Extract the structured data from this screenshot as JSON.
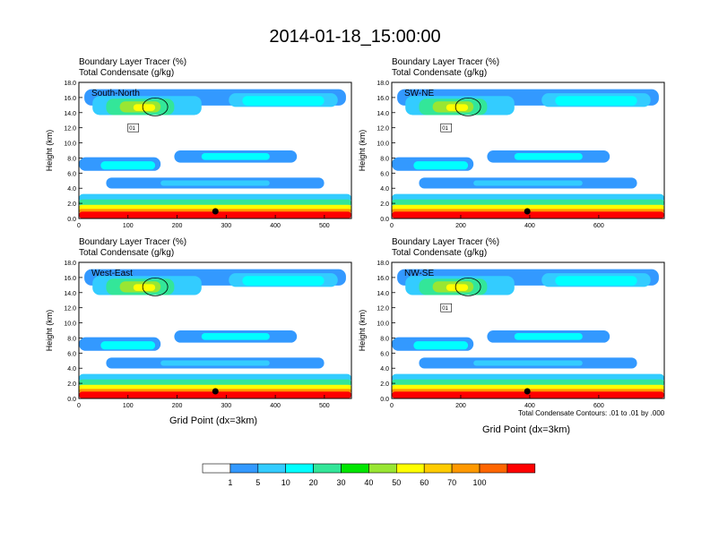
{
  "title": "2014-01-18_15:00:00",
  "colors": {
    "levels": [
      "#ffffff",
      "#3399ff",
      "#33ccff",
      "#00ffff",
      "#33e699",
      "#00e600",
      "#99e633",
      "#ffff00",
      "#ffcc00",
      "#ff9900",
      "#ff6600",
      "#ff0000"
    ],
    "contour": "#000000"
  },
  "colorbar": {
    "ticks": [
      "1",
      "5",
      "10",
      "20",
      "30",
      "40",
      "50",
      "60",
      "70",
      "100"
    ]
  },
  "contour_note": "Total Condensate Contours: .01 to .01 by .000",
  "chart_data": [
    {
      "type": "heatmap",
      "line1": "Boundary Layer Tracer   (%)",
      "line2": "Total Condensate   (g/kg)",
      "panel_label": "South-North",
      "ylabel": "Height (km)",
      "xlabel": "",
      "xlim": [
        0,
        555
      ],
      "ylim": [
        0,
        18
      ],
      "xticks": [
        "0",
        "100",
        "200",
        "300",
        "400",
        "500"
      ],
      "yticks": [
        "0.0",
        "2.0",
        "4.0",
        "6.0",
        "8.0",
        "10.0",
        "12.0",
        "14.0",
        "16.0",
        "18.0"
      ],
      "contour_label": "01",
      "marker_x": 278
    },
    {
      "type": "heatmap",
      "line1": "Boundary Layer Tracer   (%)",
      "line2": "Total Condensate   (g/kg)",
      "panel_label": "SW-NE",
      "ylabel": "Height (km)",
      "xlabel": "",
      "xlim": [
        0,
        790
      ],
      "ylim": [
        0,
        18
      ],
      "xticks": [
        "0",
        "200",
        "400",
        "600"
      ],
      "yticks": [
        "0.0",
        "2.0",
        "4.0",
        "6.0",
        "8.0",
        "10.0",
        "12.0",
        "14.0",
        "16.0",
        "18.0"
      ],
      "contour_label": "01",
      "marker_x": 393
    },
    {
      "type": "heatmap",
      "line1": "Boundary Layer Tracer   (%)",
      "line2": "Total Condensate   (g/kg)",
      "panel_label": "West-East",
      "ylabel": "Height (km)",
      "xlabel": "Grid Point (dx=3km)",
      "xlim": [
        0,
        555
      ],
      "ylim": [
        0,
        18
      ],
      "xticks": [
        "0",
        "100",
        "200",
        "300",
        "400",
        "500"
      ],
      "yticks": [
        "0.0",
        "2.0",
        "4.0",
        "6.0",
        "8.0",
        "10.0",
        "12.0",
        "14.0",
        "16.0",
        "18.0"
      ],
      "contour_label": "",
      "marker_x": 278
    },
    {
      "type": "heatmap",
      "line1": "Boundary Layer Tracer   (%)",
      "line2": "Total Condensate   (g/kg)",
      "panel_label": "NW-SE",
      "ylabel": "Height (km)",
      "xlabel": "Grid Point (dx=3km)",
      "xlim": [
        0,
        790
      ],
      "ylim": [
        0,
        18
      ],
      "xticks": [
        "0",
        "200",
        "400",
        "600"
      ],
      "yticks": [
        "0.0",
        "2.0",
        "4.0",
        "6.0",
        "8.0",
        "10.0",
        "12.0",
        "14.0",
        "16.0",
        "18.0"
      ],
      "contour_label": "01",
      "marker_x": 393
    }
  ]
}
